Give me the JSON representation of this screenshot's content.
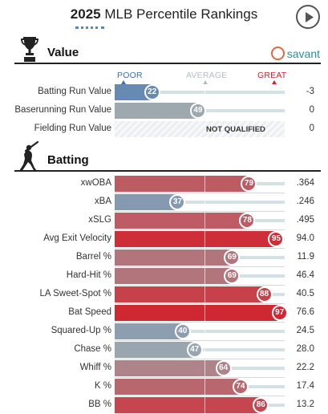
{
  "header": {
    "year": "2025",
    "title": "MLB Percentile Rankings"
  },
  "savant_label": "savant",
  "scale": {
    "poor": "POOR",
    "average": "AVERAGE",
    "great": "GREAT"
  },
  "colors": {
    "poor": "#3a71b5",
    "average": "#a0a9af",
    "great": "#d3202a"
  },
  "value_section": {
    "title": "Value",
    "rows": [
      {
        "label": "Batting Run Value",
        "percentile": 22,
        "percentile_text": "22",
        "value": "-3",
        "qualified": true
      },
      {
        "label": "Baserunning Run Value",
        "percentile": 49,
        "percentile_text": "49",
        "value": "0",
        "qualified": true
      },
      {
        "label": "Fielding Run Value",
        "percentile": null,
        "percentile_text": "",
        "value": "0",
        "qualified": false,
        "nq_text": "NOT QUALIFIED"
      }
    ]
  },
  "batting_section": {
    "title": "Batting",
    "rows": [
      {
        "label": "xwOBA",
        "percentile": 79,
        "percentile_text": "79",
        "value": ".364"
      },
      {
        "label": "xBA",
        "percentile": 37,
        "percentile_text": "37",
        "value": ".246"
      },
      {
        "label": "xSLG",
        "percentile": 78,
        "percentile_text": "78",
        "value": ".495"
      },
      {
        "label": "Avg Exit Velocity",
        "percentile": 95,
        "percentile_text": "95",
        "value": "94.0"
      },
      {
        "label": "Barrel %",
        "percentile": 69,
        "percentile_text": "69",
        "value": "11.9"
      },
      {
        "label": "Hard-Hit %",
        "percentile": 69,
        "percentile_text": "69",
        "value": "46.4"
      },
      {
        "label": "LA Sweet-Spot %",
        "percentile": 88,
        "percentile_text": "88",
        "value": "40.5"
      },
      {
        "label": "Bat Speed",
        "percentile": 97,
        "percentile_text": "97",
        "value": "76.6"
      },
      {
        "label": "Squared-Up %",
        "percentile": 40,
        "percentile_text": "40",
        "value": "24.5"
      },
      {
        "label": "Chase %",
        "percentile": 47,
        "percentile_text": "47",
        "value": "28.0"
      },
      {
        "label": "Whiff %",
        "percentile": 64,
        "percentile_text": "64",
        "value": "22.2"
      },
      {
        "label": "K %",
        "percentile": 74,
        "percentile_text": "74",
        "value": "17.4"
      },
      {
        "label": "BB %",
        "percentile": 86,
        "percentile_text": "86",
        "value": "13.2"
      }
    ]
  },
  "chart_data": {
    "type": "bar",
    "title": "2025 MLB Percentile Rankings",
    "xlim": [
      0,
      100
    ],
    "groups": [
      {
        "name": "Value",
        "categories": [
          "Batting Run Value",
          "Baserunning Run Value",
          "Fielding Run Value"
        ],
        "percentiles": [
          22,
          49,
          null
        ],
        "values": [
          "-3",
          "0",
          "0"
        ]
      },
      {
        "name": "Batting",
        "categories": [
          "xwOBA",
          "xBA",
          "xSLG",
          "Avg Exit Velocity",
          "Barrel %",
          "Hard-Hit %",
          "LA Sweet-Spot %",
          "Bat Speed",
          "Squared-Up %",
          "Chase %",
          "Whiff %",
          "K %",
          "BB %"
        ],
        "percentiles": [
          79,
          37,
          78,
          95,
          69,
          69,
          88,
          97,
          40,
          47,
          64,
          74,
          86
        ],
        "values": [
          ".364",
          ".246",
          ".495",
          "94.0",
          "11.9",
          "46.4",
          "40.5",
          "76.6",
          "24.5",
          "28.0",
          "22.2",
          "17.4",
          "13.2"
        ]
      }
    ]
  }
}
